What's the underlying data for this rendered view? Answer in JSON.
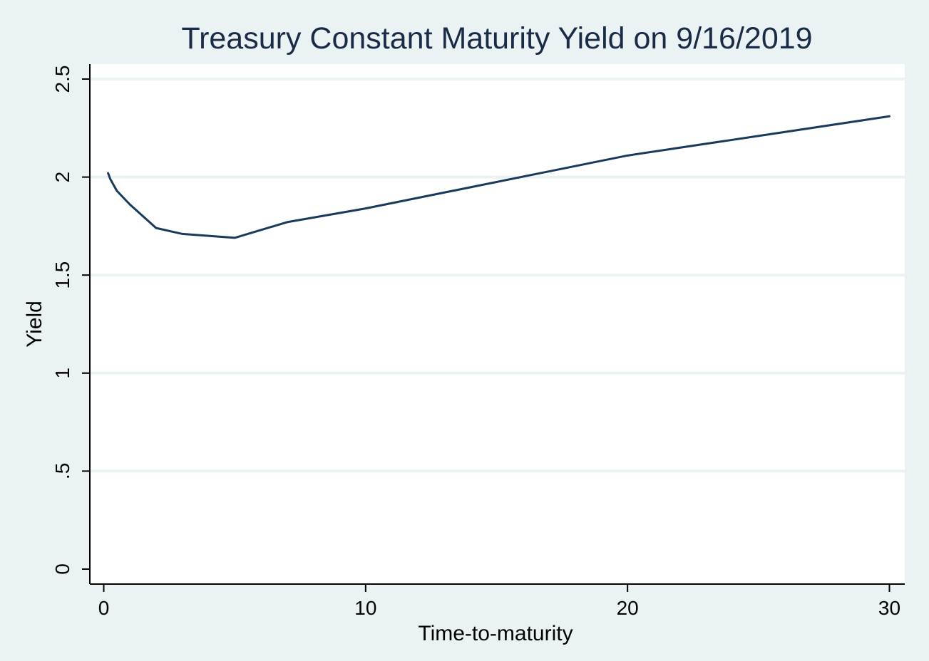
{
  "chart_data": {
    "type": "line",
    "title": "Treasury Constant Maturity Yield on 9/16/2019",
    "xlabel": "Time-to-maturity",
    "ylabel": "Yield",
    "xlim": [
      0,
      30
    ],
    "ylim": [
      0,
      2.5
    ],
    "x_ticks": [
      {
        "value": 0,
        "label": "0"
      },
      {
        "value": 10,
        "label": "10"
      },
      {
        "value": 20,
        "label": "20"
      },
      {
        "value": 30,
        "label": "30"
      }
    ],
    "y_ticks": [
      {
        "value": 0,
        "label": "0"
      },
      {
        "value": 0.5,
        "label": ".5"
      },
      {
        "value": 1,
        "label": "1"
      },
      {
        "value": 1.5,
        "label": "1.5"
      },
      {
        "value": 2,
        "label": "2"
      },
      {
        "value": 2.5,
        "label": "2.5"
      }
    ],
    "grid": true,
    "legend": "none",
    "series": [
      {
        "name": "Yield",
        "color": "#1a3a5c",
        "x": [
          0.1667,
          0.25,
          0.5,
          1,
          2,
          3,
          5,
          7,
          10,
          20,
          30
        ],
        "y": [
          2.02,
          1.99,
          1.93,
          1.86,
          1.74,
          1.71,
          1.69,
          1.77,
          1.84,
          2.11,
          2.31
        ]
      }
    ]
  },
  "colors": {
    "background": "#eaf2f3",
    "plot_background": "#ffffff",
    "gridline": "#eaf2f3",
    "axis": "#000000",
    "title": "#1a2b48",
    "line": "#1a3a5c"
  }
}
